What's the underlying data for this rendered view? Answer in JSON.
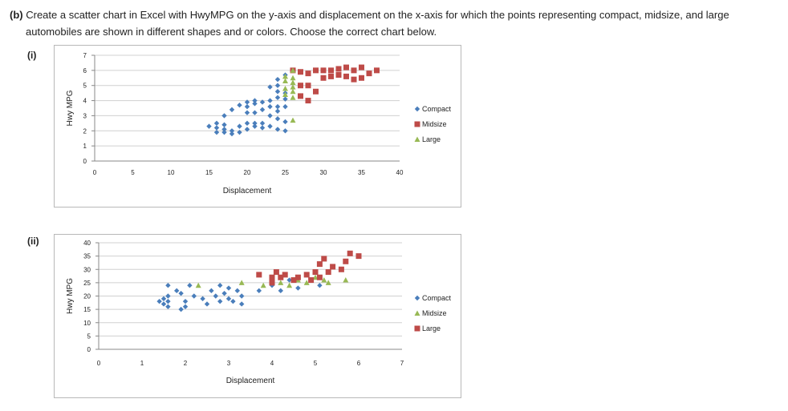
{
  "question": {
    "part": "(b)",
    "line1": "Create a scatter chart in Excel with HwyMPG on the y-axis and displacement on the x-axis for which the points representing compact, midsize, and large",
    "line2": "automobiles are shown in different shapes and or colors. Choose the correct chart below."
  },
  "options": [
    {
      "label": "(i)"
    },
    {
      "label": "(ii)"
    }
  ],
  "colors": {
    "compact": "#4a7ebb",
    "midsize": "#be4b48",
    "large": "#98b954",
    "grid": "#d0d0d0",
    "axis": "#888888"
  },
  "chart_data": [
    {
      "type": "scatter",
      "xlabel": "Displacement",
      "ylabel": "Hwy MPG",
      "xlim": [
        0,
        40
      ],
      "ylim": [
        0,
        7
      ],
      "xticks": [
        "0",
        "5",
        "10",
        "15",
        "20",
        "25",
        "30",
        "35",
        "40"
      ],
      "yticks": [
        "0",
        "1",
        "2",
        "3",
        "4",
        "5",
        "6",
        "7"
      ],
      "grid": "horizontal",
      "legend_position": "right",
      "series": [
        {
          "name": "Compact",
          "marker": "diamond",
          "color": "#4a7ebb",
          "x": [
            15,
            16,
            16,
            16,
            17,
            17,
            17,
            17,
            18,
            18,
            18,
            19,
            19,
            19,
            20,
            20,
            20,
            20,
            20,
            21,
            21,
            21,
            21,
            21,
            22,
            22,
            22,
            22,
            23,
            23,
            23,
            23,
            23,
            24,
            24,
            24,
            24,
            24,
            24,
            24,
            24,
            25,
            25,
            25,
            25,
            25,
            25
          ],
          "y": [
            2.3,
            2.2,
            2.5,
            1.9,
            2.1,
            1.9,
            2.4,
            3.0,
            1.8,
            2.0,
            3.4,
            1.9,
            2.3,
            3.7,
            2.1,
            2.5,
            3.2,
            3.6,
            3.9,
            2.3,
            2.5,
            3.2,
            3.8,
            4.0,
            2.5,
            2.2,
            3.4,
            3.9,
            2.3,
            3.0,
            3.6,
            4.0,
            4.9,
            2.1,
            2.8,
            3.3,
            3.6,
            4.2,
            4.6,
            5.0,
            5.4,
            2.0,
            2.6,
            3.6,
            4.1,
            4.5,
            5.7
          ]
        },
        {
          "name": "Midsize",
          "marker": "square",
          "color": "#be4b48",
          "x": [
            26,
            27,
            27,
            27,
            28,
            28,
            28,
            29,
            29,
            30,
            30,
            31,
            31,
            32,
            32,
            33,
            33,
            34,
            34,
            35,
            35,
            36,
            37
          ],
          "y": [
            6.0,
            4.3,
            5.0,
            5.9,
            4.0,
            5.0,
            5.8,
            4.6,
            6.0,
            5.5,
            6.0,
            5.6,
            6.0,
            5.7,
            6.1,
            5.6,
            6.2,
            5.4,
            6.0,
            5.5,
            6.2,
            5.8,
            6.0
          ]
        },
        {
          "name": "Large",
          "marker": "triangle",
          "color": "#98b954",
          "x": [
            25,
            25,
            25,
            25,
            26,
            26,
            26,
            26,
            26,
            26,
            26
          ],
          "y": [
            4.4,
            4.8,
            5.3,
            5.6,
            2.7,
            4.2,
            4.6,
            4.9,
            5.2,
            5.5,
            6.0
          ]
        }
      ]
    },
    {
      "type": "scatter",
      "xlabel": "Displacement",
      "ylabel": "Hwy MPG",
      "xlim": [
        0,
        7
      ],
      "ylim": [
        0,
        40
      ],
      "xticks": [
        "0",
        "1",
        "2",
        "3",
        "4",
        "5",
        "6",
        "7"
      ],
      "yticks": [
        "0",
        "5",
        "10",
        "15",
        "20",
        "25",
        "30",
        "35",
        "40"
      ],
      "grid": "horizontal",
      "legend_position": "right",
      "series": [
        {
          "name": "Compact",
          "marker": "diamond",
          "color": "#4a7ebb",
          "x": [
            1.4,
            1.5,
            1.5,
            1.6,
            1.6,
            1.6,
            1.6,
            1.8,
            1.9,
            1.9,
            2.0,
            2.0,
            2.1,
            2.2,
            2.4,
            2.5,
            2.6,
            2.7,
            2.8,
            2.8,
            2.9,
            3.0,
            3.0,
            3.1,
            3.2,
            3.3,
            3.3,
            3.7,
            4.0,
            4.2,
            4.4,
            4.6,
            5.1
          ],
          "y": [
            18,
            17,
            19,
            16,
            20,
            24,
            18,
            22,
            15,
            21,
            16,
            18,
            24,
            20,
            19,
            17,
            22,
            20,
            18,
            24,
            21,
            19,
            23,
            18,
            22,
            17,
            20,
            22,
            24,
            22,
            26,
            23,
            24
          ]
        },
        {
          "name": "Midsize",
          "marker": "triangle",
          "color": "#98b954",
          "x": [
            2.3,
            3.3,
            3.8,
            4.0,
            4.2,
            4.4,
            4.6,
            4.8,
            5.0,
            5.2,
            5.3,
            5.7
          ],
          "y": [
            24,
            25,
            24,
            26,
            25,
            24,
            26,
            25,
            27,
            26,
            25,
            26
          ]
        },
        {
          "name": "Large",
          "marker": "square",
          "color": "#be4b48",
          "x": [
            3.7,
            4.0,
            4.0,
            4.1,
            4.2,
            4.3,
            4.5,
            4.6,
            4.8,
            4.9,
            5.0,
            5.1,
            5.1,
            5.2,
            5.3,
            5.4,
            5.6,
            5.7,
            5.8,
            6.0
          ],
          "y": [
            28,
            25,
            27,
            29,
            27,
            28,
            26,
            27,
            28,
            26,
            29,
            32,
            27,
            34,
            29,
            31,
            30,
            33,
            36,
            35
          ]
        }
      ]
    }
  ]
}
